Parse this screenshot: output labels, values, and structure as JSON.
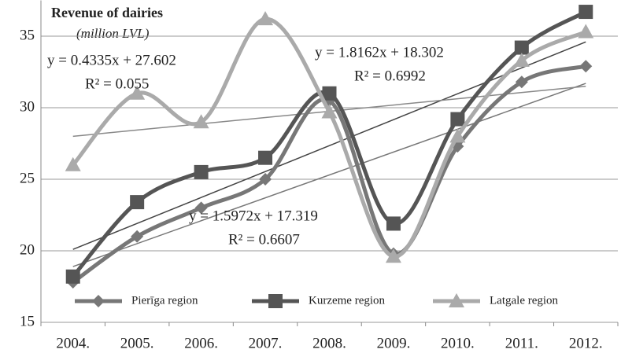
{
  "chart_data": {
    "type": "line",
    "title": "Revenue of dairies",
    "subtitle": "(million LVL)",
    "categories": [
      "2004.",
      "2005.",
      "2006.",
      "2007.",
      "2008.",
      "2009.",
      "2010.",
      "2011.",
      "2012."
    ],
    "series": [
      {
        "name": "Pierīga region",
        "color": "#777777",
        "marker": "diamond",
        "values": [
          17.8,
          21.0,
          23.0,
          25.0,
          30.5,
          19.8,
          27.3,
          31.8,
          32.9
        ]
      },
      {
        "name": "Kurzeme region",
        "color": "#555555",
        "marker": "square",
        "values": [
          18.2,
          23.4,
          25.5,
          26.5,
          31.0,
          21.9,
          29.2,
          34.2,
          36.7
        ]
      },
      {
        "name": "Latgale region",
        "color": "#aaaaaa",
        "marker": "triangle",
        "values": [
          26.0,
          31.0,
          29.0,
          36.2,
          29.7,
          19.6,
          28.0,
          33.3,
          35.3
        ]
      }
    ],
    "trendlines": [
      {
        "color": "#777777",
        "values": [
          18.9,
          31.7
        ]
      },
      {
        "color": "#444444",
        "values": [
          20.1,
          34.6
        ]
      },
      {
        "color": "#888888",
        "values": [
          28.0,
          31.5
        ]
      }
    ],
    "annotations": [
      "y = 0.4335x + 27.602",
      "R² = 0.055",
      "y = 1.8162x + 18.302",
      "R² = 0.6992",
      "y = 1.5972x + 17.319",
      "R² = 0.6607"
    ],
    "ylim": [
      15,
      37.5
    ],
    "yticks": [
      15,
      20,
      25,
      30,
      35
    ],
    "grid": true,
    "legend": "bottom"
  }
}
